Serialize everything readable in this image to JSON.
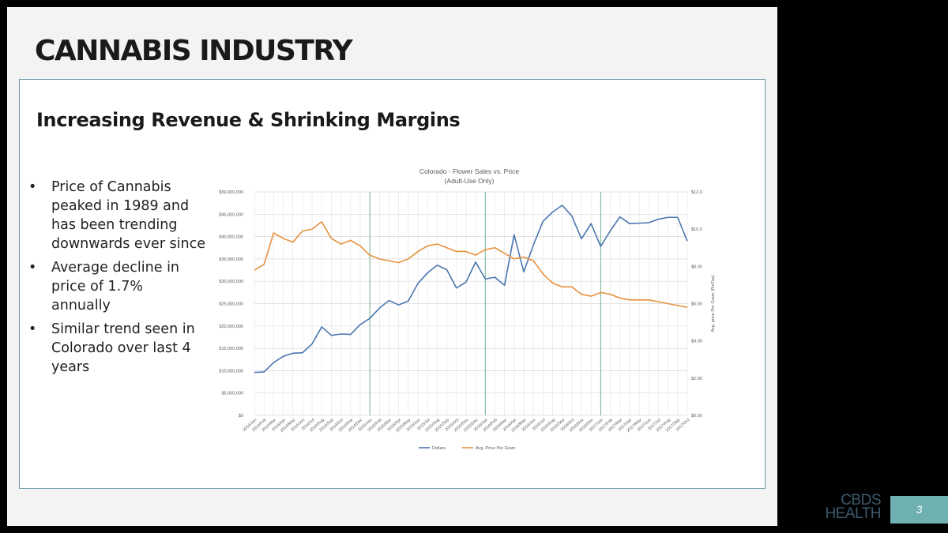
{
  "slide": {
    "title": "CANNABIS INDUSTRY",
    "subtitle": "Increasing Revenue & Shrinking Margins",
    "bullets": [
      "Price of Cannabis peaked in 1989 and has been trending downwards ever since",
      "Average decline in price of 1.7% annually",
      "Similar trend seen in Colorado over last 4 years"
    ],
    "bullet_symbol": "•",
    "brand_line1": "CBDS",
    "brand_line2": "HEALTH",
    "page_number": "3"
  },
  "colors": {
    "dollars": "#4a76b0",
    "price": "#e6913e",
    "year_marker": "#70b08a",
    "accent": "#6fb0b0",
    "brand_text": "#3d5a6e"
  },
  "chart_data": {
    "type": "line",
    "title": "Colorado - Flower Sales vs. Price",
    "subtitle": "(Adult-Use Only)",
    "ylabel": "",
    "y2label": "Avg. price Per Gram (PreTax)",
    "ylim": [
      0,
      50000000
    ],
    "y2lim": [
      0,
      12
    ],
    "y_ticks": [
      "$0",
      "$5,000,000",
      "$10,000,000",
      "$15,000,000",
      "$20,000,000",
      "$25,000,000",
      "$30,000,000",
      "$35,000,000",
      "$40,000,000",
      "$45,000,000",
      "$50,000,000"
    ],
    "y2_ticks": [
      "$0.00",
      "$2.00",
      "$4.00",
      "$6.00",
      "$8.00",
      "$10.0",
      "$12.0"
    ],
    "x": [
      "2014/Jan",
      "2014/Feb",
      "2014/Mar",
      "2014/Apr",
      "2014/May",
      "2014/Jun",
      "2014/Jul",
      "2014/Aug",
      "2014/Sep",
      "2014/Oct",
      "2014/Nov",
      "2014/Dec",
      "2015/Jan",
      "2015/Feb",
      "2015/Mar",
      "2015/Apr",
      "2015/May",
      "2015/Jun",
      "2015/Jul",
      "2015/Aug",
      "2015/Sep",
      "2015/Oct",
      "2015/Nov",
      "2015/Dec",
      "2016/Jan",
      "2016/Feb",
      "2016/Mar",
      "2016/Apr",
      "2016/May",
      "2016/Jun",
      "2016/Jul",
      "2016/Aug",
      "2016/Sep",
      "2016/Oct",
      "2016/Nov",
      "2016/Dec",
      "2017/Jan",
      "2017/Feb",
      "2017/Mar",
      "2017/Apr",
      "2017/May",
      "2017/Jun",
      "2017/Jul",
      "2017/Aug",
      "2017/Sep",
      "2017/Oct"
    ],
    "year_markers": [
      "2015/Jan",
      "2016/Jan",
      "2017/Jan"
    ],
    "grid": true,
    "legend": "bottom",
    "series": [
      {
        "name": "Dollars",
        "axis": "left",
        "values": [
          9600000,
          9700000,
          11800000,
          13200000,
          13900000,
          14000000,
          16000000,
          19800000,
          17900000,
          18200000,
          18100000,
          20300000,
          21700000,
          24000000,
          25700000,
          24700000,
          25600000,
          29500000,
          31900000,
          33600000,
          32600000,
          28500000,
          29800000,
          34300000,
          30500000,
          30900000,
          29100000,
          40400000,
          32100000,
          38100000,
          43400000,
          45500000,
          47000000,
          44600000,
          39500000,
          42900000,
          37800000,
          41300000,
          44400000,
          42900000,
          43000000,
          43100000,
          43900000,
          44300000,
          44300000,
          39000000
        ]
      },
      {
        "name": "Avg. Price Per Gram",
        "axis": "right",
        "values": [
          7.8,
          8.1,
          9.8,
          9.5,
          9.3,
          9.9,
          10.0,
          10.4,
          9.5,
          9.2,
          9.4,
          9.1,
          8.6,
          8.4,
          8.3,
          8.2,
          8.4,
          8.8,
          9.1,
          9.2,
          9.0,
          8.8,
          8.8,
          8.6,
          8.9,
          9.0,
          8.7,
          8.4,
          8.5,
          8.3,
          7.6,
          7.1,
          6.9,
          6.9,
          6.5,
          6.4,
          6.6,
          6.5,
          6.3,
          6.2,
          6.2,
          6.2,
          6.1,
          6.0,
          5.9,
          5.8
        ]
      }
    ]
  }
}
